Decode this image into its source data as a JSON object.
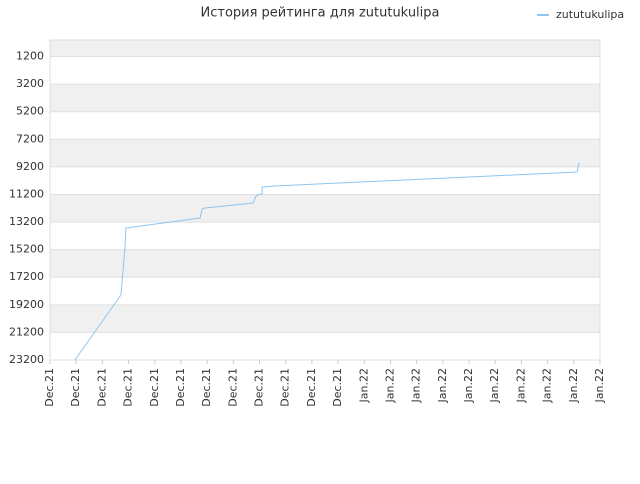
{
  "chart_data": {
    "type": "line",
    "title": "История рейтинга для zututukulipa",
    "legend": "top-right",
    "grid": true,
    "y_inverted": true,
    "xlim": [
      0,
      21
    ],
    "xticks": [
      {
        "value": 0,
        "label": "Dec.21"
      },
      {
        "value": 1,
        "label": "Dec.21"
      },
      {
        "value": 2,
        "label": "Dec.21"
      },
      {
        "value": 3,
        "label": "Dec.21"
      },
      {
        "value": 4,
        "label": "Dec.21"
      },
      {
        "value": 5,
        "label": "Dec.21"
      },
      {
        "value": 6,
        "label": "Dec.21"
      },
      {
        "value": 7,
        "label": "Dec.21"
      },
      {
        "value": 8,
        "label": "Dec.21"
      },
      {
        "value": 9,
        "label": "Dec.21"
      },
      {
        "value": 10,
        "label": "Dec.21"
      },
      {
        "value": 11,
        "label": "Dec.21"
      },
      {
        "value": 12,
        "label": "Jan.22"
      },
      {
        "value": 13,
        "label": "Jan.22"
      },
      {
        "value": 14,
        "label": "Jan.22"
      },
      {
        "value": 15,
        "label": "Jan.22"
      },
      {
        "value": 16,
        "label": "Jan.22"
      },
      {
        "value": 17,
        "label": "Jan.22"
      },
      {
        "value": 18,
        "label": "Jan.22"
      },
      {
        "value": 19,
        "label": "Jan.22"
      },
      {
        "value": 20,
        "label": "Jan.22"
      },
      {
        "value": 21,
        "label": "Jan.22"
      }
    ],
    "ylim": [
      23200,
      0
    ],
    "yticks": [
      1200,
      3200,
      5200,
      7200,
      9200,
      11200,
      13200,
      15200,
      17200,
      19200,
      21200,
      23200
    ],
    "series": [
      {
        "name": "zututukulipa",
        "color": "#8ec6f0",
        "x": [
          0.95,
          2.71,
          2.79,
          2.86,
          2.9,
          5.73,
          5.81,
          5.92,
          7.75,
          7.87,
          8.02,
          8.1,
          8.1,
          8.59,
          20.12,
          20.2
        ],
        "values": [
          23200,
          18488,
          16675,
          15080,
          13630,
          12905,
          12253,
          12180,
          11818,
          11310,
          11165,
          11165,
          10658,
          10585,
          9570,
          8918
        ]
      }
    ]
  }
}
